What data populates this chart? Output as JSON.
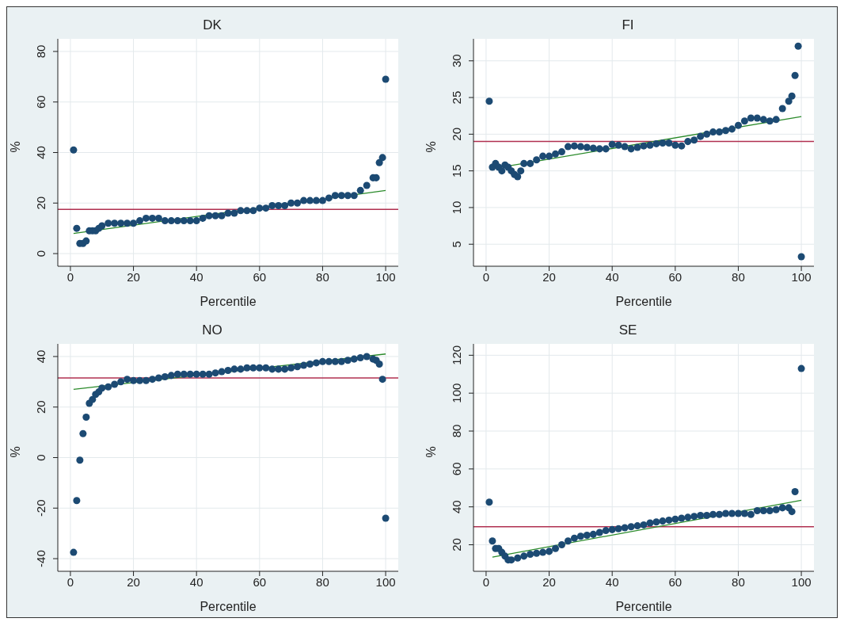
{
  "chart_data": [
    {
      "type": "scatter",
      "title": "DK",
      "xlabel": "Percentile",
      "ylabel": "%",
      "xlim": [
        -4,
        104
      ],
      "xticks": [
        0,
        20,
        40,
        60,
        80,
        100
      ],
      "ylim": [
        -5,
        85
      ],
      "yticks": [
        0,
        20,
        40,
        60,
        80
      ],
      "grid": true,
      "series": [
        {
          "color": "#1c4a73",
          "marker": "circle",
          "x": [
            1,
            2,
            3,
            4,
            5,
            6,
            7,
            8,
            9,
            10,
            12,
            14,
            16,
            18,
            20,
            22,
            24,
            26,
            28,
            30,
            32,
            34,
            36,
            38,
            40,
            42,
            44,
            46,
            48,
            50,
            52,
            54,
            56,
            58,
            60,
            62,
            64,
            66,
            68,
            70,
            72,
            74,
            76,
            78,
            80,
            82,
            84,
            86,
            88,
            90,
            92,
            94,
            96,
            97,
            98,
            99,
            100
          ],
          "values": [
            41,
            10,
            4,
            4,
            5,
            9,
            9,
            9,
            10,
            11,
            12,
            12,
            12,
            12,
            12,
            13,
            14,
            14,
            14,
            13,
            13,
            13,
            13,
            13,
            13,
            14,
            15,
            15,
            15,
            16,
            16,
            17,
            17,
            17,
            18,
            18,
            19,
            19,
            19,
            20,
            20,
            21,
            21,
            21,
            21,
            22,
            23,
            23,
            23,
            23,
            25,
            27,
            30,
            30,
            36,
            38,
            69
          ]
        },
        {
          "type": "line",
          "color": "#2a8a2a",
          "marker": "none",
          "x": [
            1,
            100
          ],
          "values": [
            8,
            25
          ]
        }
      ],
      "ref_lines": [
        {
          "axis": "y",
          "value": 17.5,
          "color": "#b03050"
        }
      ]
    },
    {
      "type": "scatter",
      "title": "FI",
      "xlabel": "Percentile",
      "ylabel": "%",
      "xlim": [
        -4,
        104
      ],
      "xticks": [
        0,
        20,
        40,
        60,
        80,
        100
      ],
      "ylim": [
        2,
        33
      ],
      "yticks": [
        5,
        10,
        15,
        20,
        25,
        30
      ],
      "grid": true,
      "series": [
        {
          "color": "#1c4a73",
          "marker": "circle",
          "x": [
            1,
            2,
            3,
            4,
            5,
            6,
            7,
            8,
            9,
            10,
            11,
            12,
            14,
            16,
            18,
            20,
            22,
            24,
            26,
            28,
            30,
            32,
            34,
            36,
            38,
            40,
            42,
            44,
            46,
            48,
            50,
            52,
            54,
            56,
            58,
            60,
            62,
            64,
            66,
            68,
            70,
            72,
            74,
            76,
            78,
            80,
            82,
            84,
            86,
            88,
            90,
            92,
            94,
            96,
            97,
            98,
            99,
            100
          ],
          "values": [
            24.5,
            15.5,
            16,
            15.5,
            15,
            15.8,
            15.5,
            15,
            14.5,
            14.2,
            15,
            16,
            16,
            16.5,
            17,
            17,
            17.3,
            17.6,
            18.3,
            18.4,
            18.3,
            18.2,
            18.1,
            18,
            18,
            18.6,
            18.5,
            18.3,
            18,
            18.2,
            18.4,
            18.5,
            18.7,
            18.8,
            18.8,
            18.5,
            18.4,
            19,
            19.2,
            19.7,
            20,
            20.3,
            20.3,
            20.5,
            20.7,
            21.2,
            21.8,
            22.2,
            22.2,
            22,
            21.8,
            22,
            23.5,
            24.5,
            25.2,
            28,
            32,
            3.3
          ]
        },
        {
          "type": "line",
          "color": "#2a8a2a",
          "marker": "none",
          "x": [
            2,
            100
          ],
          "values": [
            15.3,
            22.4
          ]
        }
      ],
      "ref_lines": [
        {
          "axis": "y",
          "value": 19,
          "color": "#b03050"
        }
      ]
    },
    {
      "type": "scatter",
      "title": "NO",
      "xlabel": "Percentile",
      "ylabel": "%",
      "xlim": [
        -4,
        104
      ],
      "xticks": [
        0,
        20,
        40,
        60,
        80,
        100
      ],
      "ylim": [
        -45,
        45
      ],
      "yticks": [
        -40,
        -20,
        0,
        20,
        40
      ],
      "grid": true,
      "series": [
        {
          "color": "#1c4a73",
          "marker": "circle",
          "x": [
            1,
            2,
            3,
            4,
            5,
            6,
            7,
            8,
            9,
            10,
            12,
            14,
            16,
            18,
            20,
            22,
            24,
            26,
            28,
            30,
            32,
            34,
            36,
            38,
            40,
            42,
            44,
            46,
            48,
            50,
            52,
            54,
            56,
            58,
            60,
            62,
            64,
            66,
            68,
            70,
            72,
            74,
            76,
            78,
            80,
            82,
            84,
            86,
            88,
            90,
            92,
            94,
            96,
            97,
            98,
            99,
            100
          ],
          "values": [
            -37.5,
            -17,
            -1,
            9.5,
            16,
            21.5,
            23,
            25,
            26,
            27.5,
            28,
            29,
            30,
            31,
            30.5,
            30.5,
            30.5,
            31,
            31.5,
            32,
            32.5,
            33,
            33,
            33,
            33,
            33,
            33,
            33.5,
            34,
            34.5,
            35,
            35,
            35.5,
            35.5,
            35.5,
            35.5,
            35,
            35,
            35,
            35.5,
            36,
            36.5,
            37,
            37.5,
            38,
            38,
            38,
            38,
            38.5,
            39,
            39.5,
            40,
            39,
            38.5,
            37,
            31,
            -24
          ]
        },
        {
          "type": "line",
          "color": "#2a8a2a",
          "marker": "none",
          "x": [
            1,
            100
          ],
          "values": [
            27,
            41
          ]
        }
      ],
      "ref_lines": [
        {
          "axis": "y",
          "value": 31.5,
          "color": "#b03050"
        }
      ]
    },
    {
      "type": "scatter",
      "title": "SE",
      "xlabel": "Percentile",
      "ylabel": "%",
      "xlim": [
        -4,
        104
      ],
      "xticks": [
        0,
        20,
        40,
        60,
        80,
        100
      ],
      "ylim": [
        6,
        126
      ],
      "yticks": [
        20,
        40,
        60,
        80,
        100,
        120
      ],
      "grid": true,
      "series": [
        {
          "color": "#1c4a73",
          "marker": "circle",
          "x": [
            1,
            2,
            3,
            4,
            5,
            6,
            7,
            8,
            10,
            12,
            14,
            16,
            18,
            20,
            22,
            24,
            26,
            28,
            30,
            32,
            34,
            36,
            38,
            40,
            42,
            44,
            46,
            48,
            50,
            52,
            54,
            56,
            58,
            60,
            62,
            64,
            66,
            68,
            70,
            72,
            74,
            76,
            78,
            80,
            82,
            84,
            86,
            88,
            90,
            92,
            94,
            96,
            97,
            98,
            100
          ],
          "values": [
            42.5,
            22,
            18,
            18,
            16,
            14,
            12,
            12,
            13,
            14,
            15,
            15.5,
            16,
            16.5,
            18,
            20,
            22,
            23.5,
            24.5,
            25,
            25.5,
            26.5,
            27.5,
            28,
            28.5,
            29,
            29.5,
            30,
            30.5,
            31.5,
            32,
            32.5,
            33,
            33.5,
            34,
            34.5,
            35,
            35.5,
            35.5,
            36,
            36,
            36.5,
            36.5,
            36.5,
            36.5,
            36,
            38,
            38,
            38,
            38.5,
            39.5,
            39.5,
            37.5,
            48,
            113
          ]
        },
        {
          "type": "line",
          "color": "#2a8a2a",
          "marker": "none",
          "x": [
            2,
            100
          ],
          "values": [
            13.5,
            43.5
          ]
        }
      ],
      "ref_lines": [
        {
          "axis": "y",
          "value": 29.5,
          "color": "#b03050"
        }
      ]
    }
  ]
}
